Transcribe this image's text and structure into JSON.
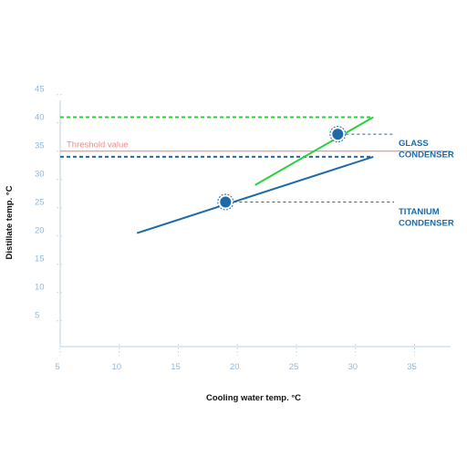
{
  "colors": {
    "glass": "#2dcf3a",
    "titanium": "#1e6aa6",
    "threshold": "#f08a8a",
    "axis": "#b7d3e8",
    "tick_text": "#8fb9db",
    "grid_dash": "#c7dcec"
  },
  "chart_data": {
    "type": "line",
    "xlabel": "Cooling water temp. °C",
    "ylabel": "Distillate temp. °C",
    "xlim": [
      5,
      38
    ],
    "ylim": [
      3,
      46
    ],
    "x_ticks": [
      5,
      10,
      15,
      20,
      25,
      30,
      35
    ],
    "y_ticks": [
      5,
      10,
      15,
      20,
      25,
      30,
      35,
      40,
      45
    ],
    "grid": false,
    "threshold": {
      "label": "Threshold value",
      "y": 35
    },
    "series": [
      {
        "name": "GLASS CONDENSER",
        "label_lines": [
          "GLASS",
          "CONDENSER"
        ],
        "x": [
          21.5,
          31.5
        ],
        "y": [
          29,
          41
        ],
        "reference_level": 41,
        "marker": {
          "x": 28.5,
          "y": 38
        }
      },
      {
        "name": "TITANIUM CONDENSER",
        "label_lines": [
          "TITANIUM",
          "CONDENSER"
        ],
        "x": [
          11.5,
          31.5
        ],
        "y": [
          20.5,
          34
        ],
        "reference_level": 34,
        "marker": {
          "x": 19,
          "y": 26
        }
      }
    ]
  }
}
